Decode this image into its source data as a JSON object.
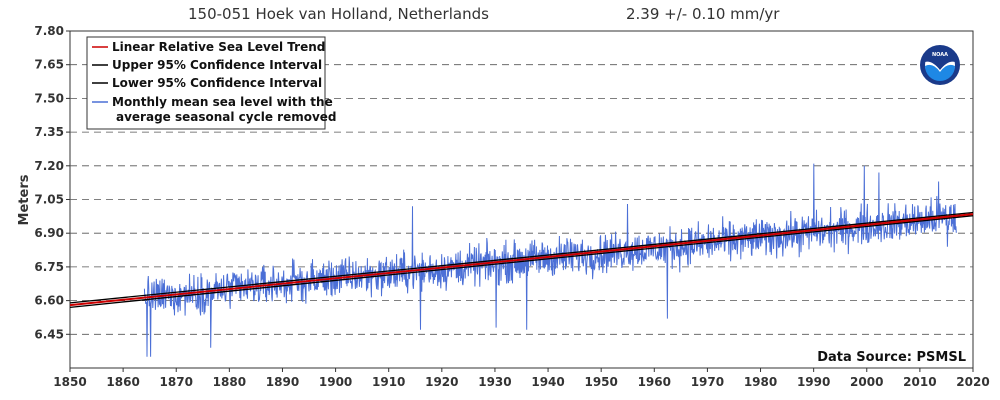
{
  "chart_data": {
    "type": "line",
    "title": "150-051 Hoek van Holland, Netherlands",
    "trend_label": "2.39 +/-  0.10 mm/yr",
    "trend_rate_mm_per_yr": 2.39,
    "trend_uncertainty_mm_per_yr": 0.1,
    "xlabel": "",
    "ylabel": "Meters",
    "xlim": [
      1850,
      2020
    ],
    "ylim": [
      6.3,
      7.8
    ],
    "xticks": [
      1850,
      1860,
      1870,
      1880,
      1890,
      1900,
      1910,
      1920,
      1930,
      1940,
      1950,
      1960,
      1970,
      1980,
      1990,
      2000,
      2010,
      2020
    ],
    "yticks": [
      6.45,
      6.6,
      6.75,
      6.9,
      7.05,
      7.2,
      7.35,
      7.5,
      7.65,
      7.8
    ],
    "ytick_labels": [
      "6.45",
      "6.60",
      "6.75",
      "6.90",
      "7.05",
      "7.20",
      "7.35",
      "7.50",
      "7.65",
      "7.80"
    ],
    "grid": "horizontal dashed",
    "legend_position": "top-left",
    "data_source": "Data Source: PSMSL",
    "series": [
      {
        "name": "Linear Relative Sea Level Trend",
        "color": "#cc0000",
        "kind": "trend",
        "x": [
          1850,
          2020
        ],
        "y": [
          6.58,
          6.985
        ]
      },
      {
        "name": "Upper 95% Confidence Interval",
        "color": "#000000",
        "kind": "trend",
        "x": [
          1850,
          2020
        ],
        "y": [
          6.59,
          6.992
        ]
      },
      {
        "name": "Lower 95% Confidence Interval",
        "color": "#000000",
        "kind": "trend",
        "x": [
          1850,
          2020
        ],
        "y": [
          6.57,
          6.978
        ]
      },
      {
        "name": "Monthly mean sea level with the",
        "name_line2": "average seasonal cycle removed",
        "color": "#4b6fd6",
        "kind": "monthly",
        "x_start": 1864.0,
        "x_end": 2016.9,
        "step_years": 0.0833,
        "y_approx": {
          "x": [
            1864,
            1880,
            1900,
            1920,
            1940,
            1960,
            1980,
            2000,
            2016
          ],
          "y": [
            6.61,
            6.65,
            6.7,
            6.74,
            6.79,
            6.83,
            6.88,
            6.93,
            6.97
          ]
        },
        "extremes": [
          {
            "x": 1864.5,
            "y": 6.35
          },
          {
            "x": 1865.2,
            "y": 6.35
          },
          {
            "x": 1876.5,
            "y": 6.39
          },
          {
            "x": 1914.5,
            "y": 7.02
          },
          {
            "x": 1916.0,
            "y": 6.47
          },
          {
            "x": 1930.2,
            "y": 6.48
          },
          {
            "x": 1936.0,
            "y": 6.47
          },
          {
            "x": 1955.0,
            "y": 7.03
          },
          {
            "x": 1962.5,
            "y": 6.52
          },
          {
            "x": 1990.0,
            "y": 7.21
          },
          {
            "x": 1999.5,
            "y": 7.2
          },
          {
            "x": 2002.3,
            "y": 7.17
          },
          {
            "x": 2013.5,
            "y": 7.13
          },
          {
            "x": 2015.2,
            "y": 6.84
          }
        ]
      }
    ]
  },
  "logo": {
    "name": "NOAA",
    "color_outer": "#1a3a8a",
    "color_inner": "#1e88e5"
  }
}
